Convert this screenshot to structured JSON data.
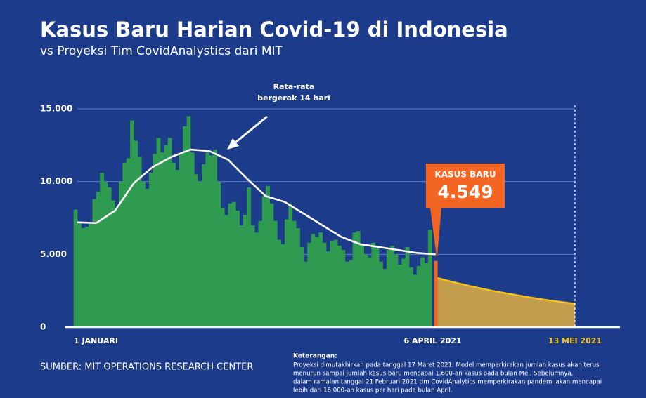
{
  "chart_data": {
    "type": "bar",
    "title": "Kasus Baru Harian Covid-19 di Indonesia",
    "subtitle": "vs Proyeksi Tim CovidAnalystics dari MIT",
    "xlim": [
      0,
      132
    ],
    "xticks": [
      {
        "value": 0,
        "label": "1 JANUARI"
      },
      {
        "value": 95,
        "label": "6 APRIL 2021"
      },
      {
        "value": 132,
        "label": "13 MEI 2021"
      }
    ],
    "ylim": [
      0,
      15000
    ],
    "yticks": [
      0,
      {
        "value": 5000,
        "label": "5.000"
      },
      {
        "value": 10000,
        "label": "10.000"
      },
      {
        "value": 15000,
        "label": "15.000"
      }
    ],
    "grid": true,
    "series": [
      {
        "type": "bar",
        "color": "#2e9b50",
        "highlight_color": "#f26522",
        "x": [
          0,
          1,
          2,
          3,
          4,
          5,
          6,
          7,
          8,
          9,
          10,
          11,
          12,
          13,
          14,
          15,
          16,
          17,
          18,
          19,
          20,
          21,
          22,
          23,
          24,
          25,
          26,
          27,
          28,
          29,
          30,
          31,
          32,
          33,
          34,
          35,
          36,
          37,
          38,
          39,
          40,
          41,
          42,
          43,
          44,
          45,
          46,
          47,
          48,
          49,
          50,
          51,
          52,
          53,
          54,
          55,
          56,
          57,
          58,
          59,
          60,
          61,
          62,
          63,
          64,
          65,
          66,
          67,
          68,
          69,
          70,
          71,
          72,
          73,
          74,
          75,
          76,
          77,
          78,
          79,
          80,
          81,
          82,
          83,
          84,
          85,
          86,
          87,
          88,
          89,
          90,
          91,
          92,
          93,
          94,
          95
        ],
        "values": [
          8072,
          7200,
          6800,
          6900,
          7100,
          8800,
          9300,
          10600,
          10000,
          9600,
          8700,
          8200,
          10000,
          11300,
          11600,
          14200,
          12800,
          11700,
          10000,
          9500,
          10600,
          11900,
          13000,
          12000,
          12500,
          13000,
          11300,
          10800,
          11900,
          13800,
          14500,
          12000,
          10500,
          10000,
          11200,
          12000,
          11800,
          12200,
          10000,
          8200,
          7700,
          8500,
          8600,
          8000,
          7000,
          7700,
          9600,
          7000,
          6500,
          7300,
          9000,
          9700,
          8500,
          7300,
          6000,
          5700,
          7400,
          8500,
          7300,
          6800,
          5500,
          4500,
          5800,
          6400,
          6200,
          6500,
          5800,
          5200,
          5900,
          6000,
          5600,
          5300,
          4500,
          4600,
          6500,
          6600,
          5700,
          5000,
          4800,
          5800,
          5400,
          4500,
          4000,
          5300,
          5600,
          5000,
          4300,
          4700,
          5500,
          4100,
          3600,
          4200,
          4800,
          4400,
          6700,
          4549
        ]
      },
      {
        "type": "line",
        "color": "#ffffff",
        "x": [
          0,
          5,
          10,
          15,
          20,
          25,
          30,
          35,
          40,
          45,
          50,
          55,
          60,
          65,
          70,
          75,
          80,
          85,
          90,
          95
        ],
        "values": [
          7200,
          7150,
          8000,
          9900,
          11000,
          11700,
          12200,
          12100,
          11500,
          10200,
          9000,
          8600,
          7800,
          7000,
          6200,
          5700,
          5500,
          5300,
          5100,
          5000
        ]
      },
      {
        "type": "area",
        "color": "#f2c21a",
        "fill": "#c49d4c",
        "x": [
          95,
          100,
          105,
          110,
          115,
          120,
          125,
          130,
          132
        ],
        "values": [
          3400,
          3070,
          2770,
          2500,
          2260,
          2040,
          1840,
          1670,
          1600
        ]
      }
    ],
    "annotation": [
      "Rata-rata",
      "bergerak 14 hari"
    ],
    "callout": {
      "title": "KASUS BARU",
      "label": "4.549"
    },
    "source": "SUMBER: MIT OPERATIONS RESEARCH CENTER",
    "notes": {
      "title": "Keterangan:",
      "lines": [
        "Proyeksi dimutakhirkan pada tanggal 17 Maret 2021. Model memperkirakan jumlah kasus akan terus",
        "menurun sampai jumlah kasus baru mencapai 1.600-an kasus pada bulan Mei. Sebelumnya,",
        "dalam ramalan tanggal 21 Februari 2021 tim CovidAnalytics memperkirakan pandemi akan mencapai",
        "lebih dari 16.000-an kasus per hari pada bulan April."
      ]
    }
  }
}
